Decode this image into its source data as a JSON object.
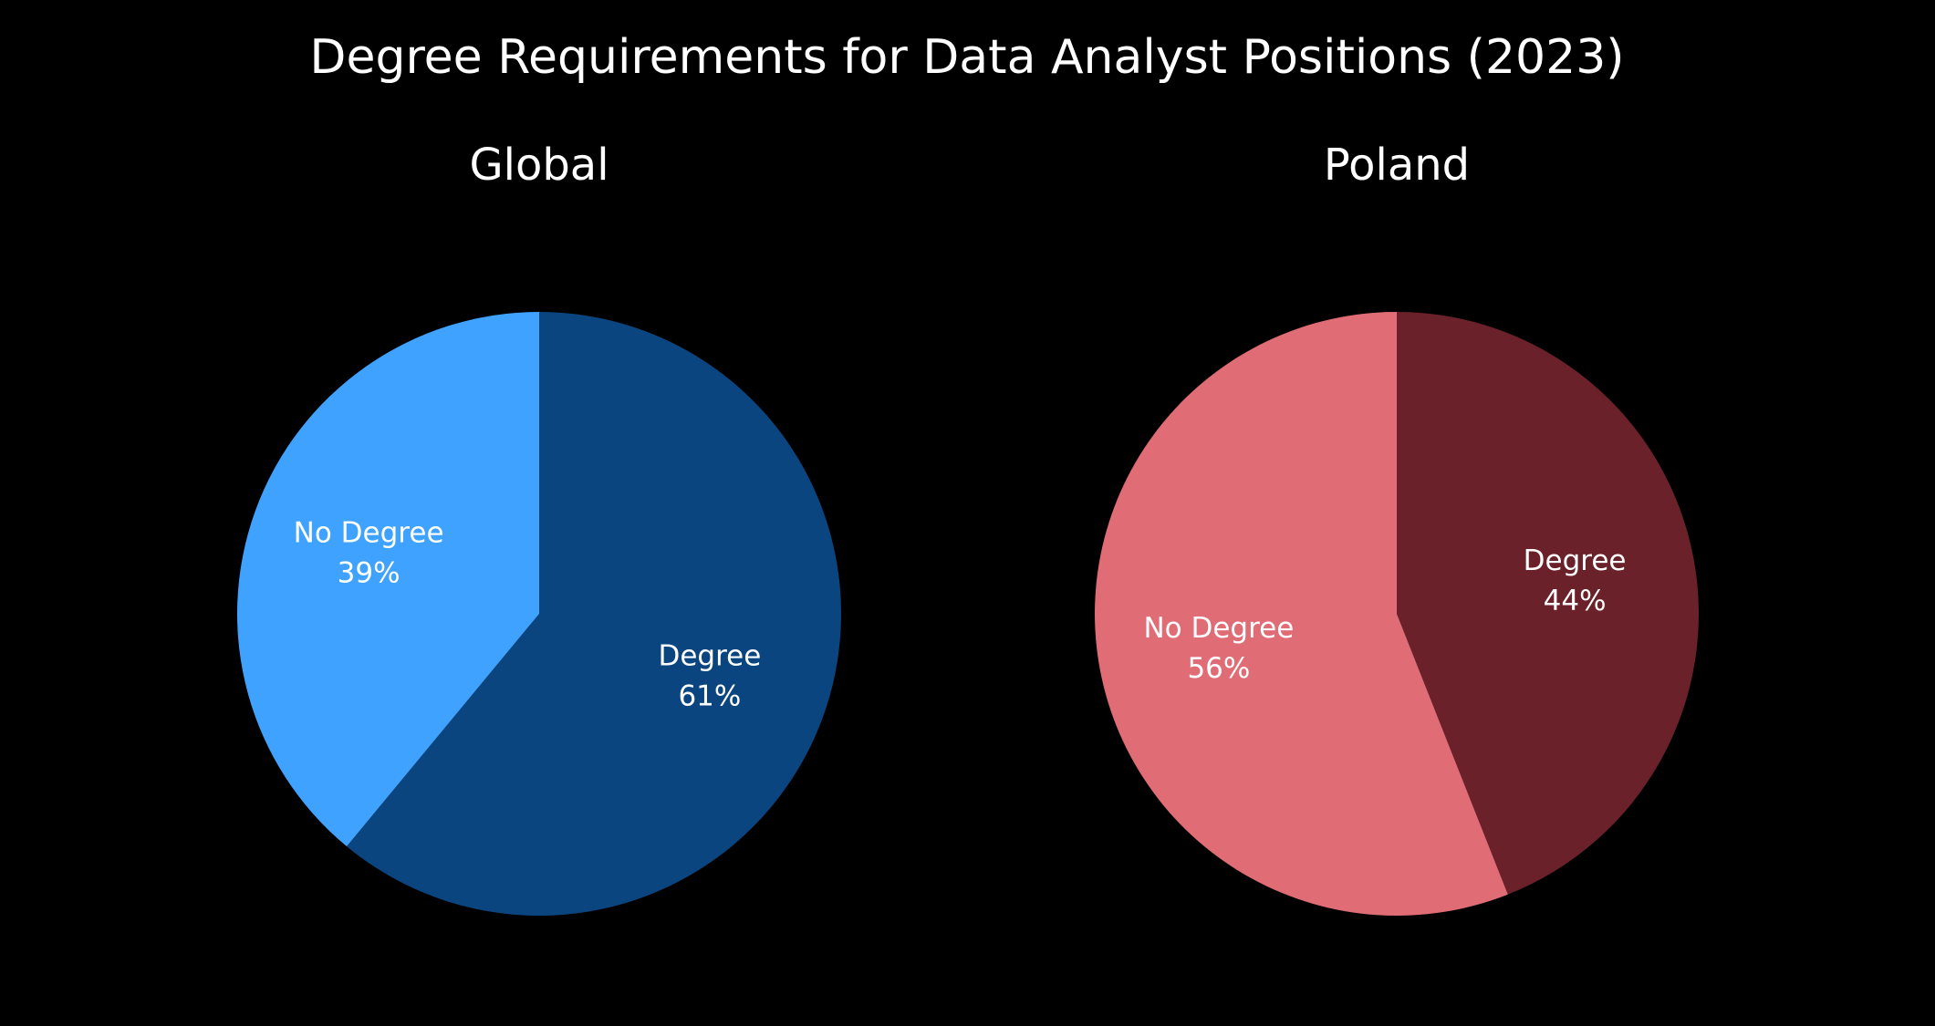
{
  "title": "Degree Requirements for Data Analyst Positions (2023)",
  "chart_data": [
    {
      "type": "pie",
      "title": "Global",
      "start_angle": "12 o'clock",
      "direction": "clockwise",
      "slices": [
        {
          "label": "Degree",
          "value": 61,
          "display": "61%",
          "color": "#0a4580"
        },
        {
          "label": "No Degree",
          "value": 39,
          "display": "39%",
          "color": "#40a2ff"
        }
      ]
    },
    {
      "type": "pie",
      "title": "Poland",
      "start_angle": "12 o'clock",
      "direction": "clockwise",
      "slices": [
        {
          "label": "Degree",
          "value": 44,
          "display": "44%",
          "color": "#6a2129"
        },
        {
          "label": "No Degree",
          "value": 56,
          "display": "56%",
          "color": "#e06c75"
        }
      ]
    }
  ]
}
